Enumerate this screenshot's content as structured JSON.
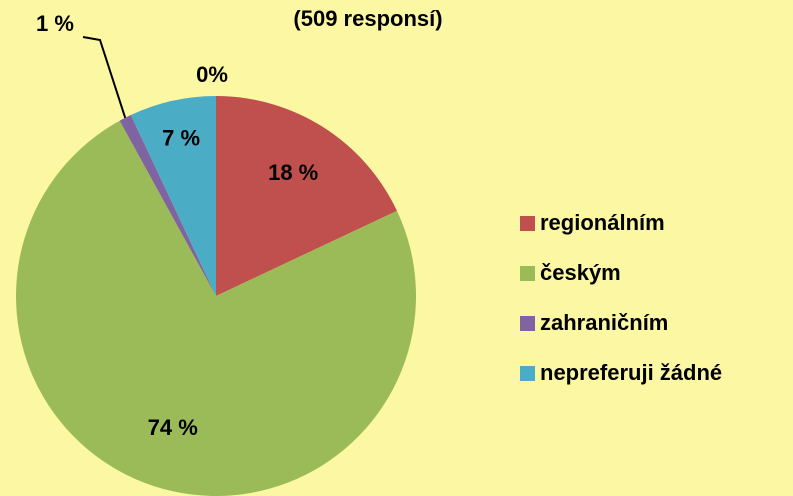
{
  "chart_data": {
    "type": "pie",
    "subtitle": "(509 responsí)",
    "categories": [
      "regionálním",
      "českým",
      "zahraničním",
      "nepreferuji žádné"
    ],
    "values": [
      18,
      74,
      1,
      7
    ],
    "value_labels": [
      "18 %",
      "74 %",
      "1 %",
      "7 %"
    ],
    "colors": [
      "#c0504d",
      "#9bbb59",
      "#8064a2",
      "#4bacc6"
    ],
    "annotations": [
      "0%"
    ],
    "legend": "right"
  }
}
